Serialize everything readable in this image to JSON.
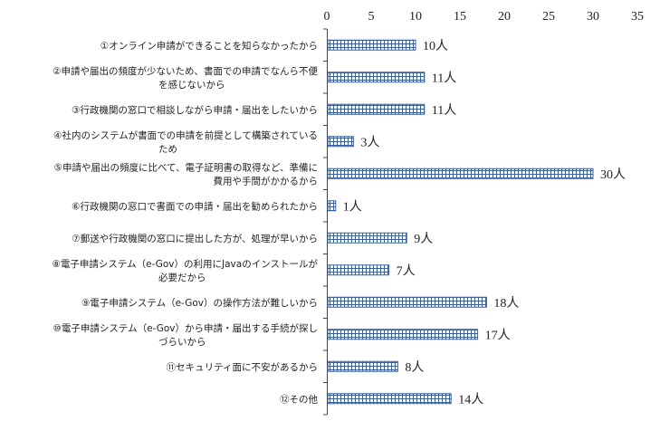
{
  "chart_data": {
    "type": "bar",
    "orientation": "horizontal",
    "title": "",
    "xlabel": "",
    "ylabel": "",
    "xlim": [
      0,
      35
    ],
    "ticks": [
      0,
      5,
      10,
      15,
      20,
      25,
      30,
      35
    ],
    "tick_position": "top",
    "grid": false,
    "legend": "none",
    "bar_fill": "blue crosshatch",
    "unit_suffix": "人",
    "categories": [
      {
        "lines": [
          "①オンライン申請ができることを知らなかったから"
        ],
        "value": 10,
        "label": "10人"
      },
      {
        "lines": [
          "②申請や届出の頻度が少ないため、書面での申請でなんら不便",
          "を感じないから"
        ],
        "value": 11,
        "label": "11人"
      },
      {
        "lines": [
          "③行政機関の窓口で相談しながら申請・届出をしたいから"
        ],
        "value": 11,
        "label": "11人"
      },
      {
        "lines": [
          "④社内のシステムが書面での申請を前提として構築されている",
          "ため"
        ],
        "value": 3,
        "label": "3人"
      },
      {
        "lines": [
          "⑤申請や届出の頻度に比べて、電子証明書の取得など、準備に",
          "費用や手間がかかるから"
        ],
        "value": 30,
        "label": "30人"
      },
      {
        "lines": [
          "⑥行政機関の窓口で書面での申請・届出を勧められたから"
        ],
        "value": 1,
        "label": "1人"
      },
      {
        "lines": [
          "⑦郵送や行政機関の窓口に提出した方が、処理が早いから"
        ],
        "value": 9,
        "label": "9人"
      },
      {
        "lines": [
          "⑧電子申請システム（e-Gov）の利用にJavaのインストールが",
          "必要だから"
        ],
        "value": 7,
        "label": "7人"
      },
      {
        "lines": [
          "⑨電子申請システム（e-Gov）の操作方法が難しいから"
        ],
        "value": 18,
        "label": "18人"
      },
      {
        "lines": [
          "⑩電子申請システム（e-Gov）から申請・届出する手続が探し",
          "づらいから"
        ],
        "value": 17,
        "label": "17人"
      },
      {
        "lines": [
          "⑪セキュリティ面に不安があるから"
        ],
        "value": 8,
        "label": "8人"
      },
      {
        "lines": [
          "⑫その他"
        ],
        "value": 14,
        "label": "14人"
      }
    ],
    "colors": {
      "bar_line": "#3a5f9e",
      "bar_fill": "#ffffff",
      "axis": "#444444"
    }
  }
}
